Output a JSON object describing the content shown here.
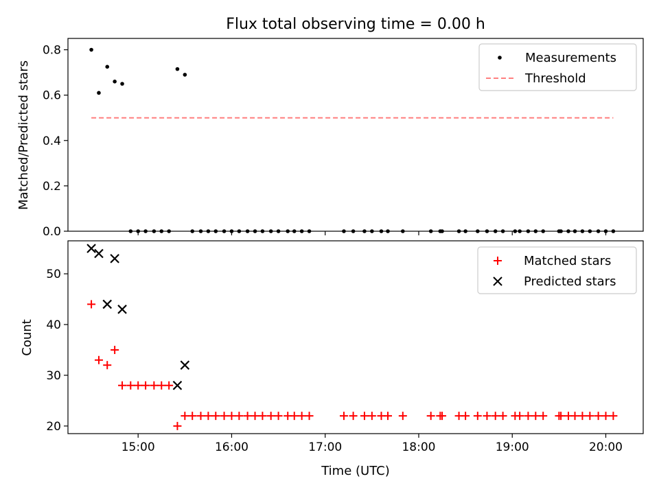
{
  "chart_data": [
    {
      "type": "scatter",
      "title": "Flux total observing time = 0.00 h",
      "xlabel": "",
      "ylabel": "Matched/Predicted stars",
      "xlim": [
        14.25,
        20.4
      ],
      "ylim": [
        0,
        0.85
      ],
      "yticks": [
        0.0,
        0.2,
        0.4,
        0.6,
        0.8
      ],
      "legend_position": "top-right",
      "legend": [
        "Measurements",
        "Threshold"
      ],
      "series": [
        {
          "name": "Measurements",
          "color": "#000000",
          "marker": "dot",
          "points": [
            [
              14.5,
              0.8
            ],
            [
              14.58,
              0.61
            ],
            [
              14.67,
              0.725
            ],
            [
              14.75,
              0.66
            ],
            [
              14.83,
              0.65
            ],
            [
              15.42,
              0.715
            ],
            [
              15.5,
              0.69
            ],
            [
              14.92,
              0
            ],
            [
              15.0,
              0
            ],
            [
              15.08,
              0
            ],
            [
              15.17,
              0
            ],
            [
              15.25,
              0
            ],
            [
              15.33,
              0
            ],
            [
              15.58,
              0
            ],
            [
              15.67,
              0
            ],
            [
              15.75,
              0
            ],
            [
              15.83,
              0
            ],
            [
              15.92,
              0
            ],
            [
              16.0,
              0
            ],
            [
              16.08,
              0
            ],
            [
              16.17,
              0
            ],
            [
              16.25,
              0
            ],
            [
              16.33,
              0
            ],
            [
              16.42,
              0
            ],
            [
              16.5,
              0
            ],
            [
              16.6,
              0
            ],
            [
              16.67,
              0
            ],
            [
              16.75,
              0
            ],
            [
              16.83,
              0
            ],
            [
              17.2,
              0
            ],
            [
              17.3,
              0
            ],
            [
              17.42,
              0
            ],
            [
              17.5,
              0
            ],
            [
              17.6,
              0
            ],
            [
              17.67,
              0
            ],
            [
              17.83,
              0
            ],
            [
              18.13,
              0
            ],
            [
              18.23,
              0
            ],
            [
              18.25,
              0
            ],
            [
              18.43,
              0
            ],
            [
              18.5,
              0
            ],
            [
              18.63,
              0
            ],
            [
              18.73,
              0
            ],
            [
              18.82,
              0
            ],
            [
              18.9,
              0
            ],
            [
              19.03,
              0
            ],
            [
              19.08,
              0
            ],
            [
              19.17,
              0
            ],
            [
              19.25,
              0
            ],
            [
              19.33,
              0
            ],
            [
              19.5,
              0
            ],
            [
              19.52,
              0
            ],
            [
              19.6,
              0
            ],
            [
              19.67,
              0
            ],
            [
              19.75,
              0
            ],
            [
              19.83,
              0
            ],
            [
              19.92,
              0
            ],
            [
              20.0,
              0
            ],
            [
              20.08,
              0
            ]
          ]
        },
        {
          "name": "Threshold",
          "color": "#ff7f7f",
          "style": "dashed",
          "points": [
            [
              14.5,
              0.5
            ],
            [
              20.08,
              0.5
            ]
          ]
        }
      ]
    },
    {
      "type": "scatter",
      "xlabel": "Time (UTC)",
      "ylabel": "Count",
      "xlim": [
        14.25,
        20.4
      ],
      "ylim": [
        18.5,
        56.5
      ],
      "yticks": [
        20,
        30,
        40,
        50
      ],
      "xticks": [
        15,
        16,
        17,
        18,
        19,
        20
      ],
      "xtick_labels": [
        "15:00",
        "16:00",
        "17:00",
        "18:00",
        "19:00",
        "20:00"
      ],
      "legend_position": "top-right",
      "legend": [
        "Matched stars",
        "Predicted stars"
      ],
      "series": [
        {
          "name": "Matched stars",
          "color": "#ff0000",
          "marker": "plus",
          "points": [
            [
              14.5,
              44
            ],
            [
              14.58,
              33
            ],
            [
              14.67,
              32
            ],
            [
              14.75,
              35
            ],
            [
              14.83,
              28
            ],
            [
              14.92,
              28
            ],
            [
              15.0,
              28
            ],
            [
              15.08,
              28
            ],
            [
              15.17,
              28
            ],
            [
              15.25,
              28
            ],
            [
              15.33,
              28
            ],
            [
              15.42,
              20
            ],
            [
              15.5,
              22
            ],
            [
              15.58,
              22
            ],
            [
              15.67,
              22
            ],
            [
              15.75,
              22
            ],
            [
              15.83,
              22
            ],
            [
              15.92,
              22
            ],
            [
              16.0,
              22
            ],
            [
              16.08,
              22
            ],
            [
              16.17,
              22
            ],
            [
              16.25,
              22
            ],
            [
              16.33,
              22
            ],
            [
              16.42,
              22
            ],
            [
              16.5,
              22
            ],
            [
              16.6,
              22
            ],
            [
              16.67,
              22
            ],
            [
              16.75,
              22
            ],
            [
              16.83,
              22
            ],
            [
              17.2,
              22
            ],
            [
              17.3,
              22
            ],
            [
              17.42,
              22
            ],
            [
              17.5,
              22
            ],
            [
              17.6,
              22
            ],
            [
              17.67,
              22
            ],
            [
              17.83,
              22
            ],
            [
              18.13,
              22
            ],
            [
              18.23,
              22
            ],
            [
              18.25,
              22
            ],
            [
              18.43,
              22
            ],
            [
              18.5,
              22
            ],
            [
              18.63,
              22
            ],
            [
              18.73,
              22
            ],
            [
              18.82,
              22
            ],
            [
              18.9,
              22
            ],
            [
              19.03,
              22
            ],
            [
              19.08,
              22
            ],
            [
              19.17,
              22
            ],
            [
              19.25,
              22
            ],
            [
              19.33,
              22
            ],
            [
              19.5,
              22
            ],
            [
              19.52,
              22
            ],
            [
              19.6,
              22
            ],
            [
              19.67,
              22
            ],
            [
              19.75,
              22
            ],
            [
              19.83,
              22
            ],
            [
              19.92,
              22
            ],
            [
              20.0,
              22
            ],
            [
              20.08,
              22
            ]
          ]
        },
        {
          "name": "Predicted stars",
          "color": "#000000",
          "marker": "x",
          "points": [
            [
              14.5,
              55
            ],
            [
              14.58,
              54
            ],
            [
              14.67,
              44
            ],
            [
              14.75,
              53
            ],
            [
              14.83,
              43
            ],
            [
              15.42,
              28
            ],
            [
              15.5,
              32
            ]
          ]
        }
      ]
    }
  ]
}
